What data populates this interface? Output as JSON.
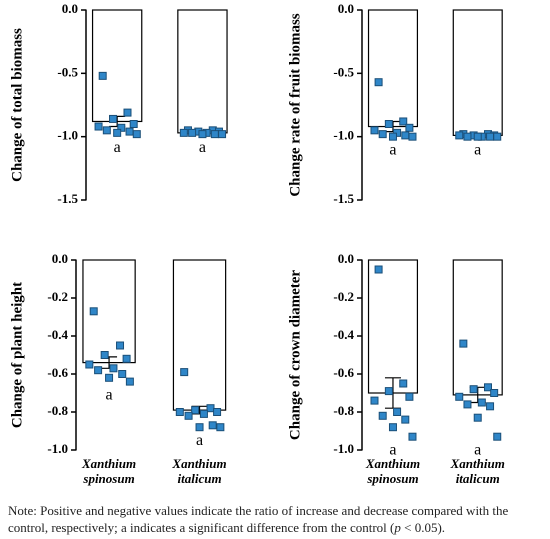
{
  "chart_data": [
    {
      "type": "bar",
      "ylabel": "Change of total biomass",
      "ylim": [
        -1.5,
        0
      ],
      "yticks": [
        {
          "value": 0,
          "label": "0.0"
        },
        -0.5,
        {
          "value": -1,
          "label": "-1.0"
        },
        -1.5
      ],
      "categories": [
        null,
        null
      ],
      "values": [
        -0.88,
        -0.97
      ],
      "errors": [
        0.04,
        0.01
      ],
      "points": [
        [
          -0.52,
          -0.81,
          -0.86,
          -0.9,
          -0.92,
          -0.93,
          -0.95,
          -0.96,
          -0.97,
          -0.98
        ],
        [
          -0.95,
          -0.95,
          -0.96,
          -0.96,
          -0.97,
          -0.97,
          -0.97,
          -0.98,
          -0.98,
          -0.98
        ]
      ],
      "annotations": [
        "a",
        "a"
      ],
      "bar_color": "#ffffff",
      "point_color": "#2f86c8"
    },
    {
      "type": "bar",
      "ylabel": "Change rate of fruit biomass",
      "ylim": [
        -1.5,
        0
      ],
      "yticks": [
        {
          "value": 0,
          "label": "0.0"
        },
        -0.5,
        {
          "value": -1,
          "label": "-1.0"
        },
        -1.5
      ],
      "categories": [
        null,
        null
      ],
      "values": [
        -0.92,
        -0.99
      ],
      "errors": [
        0.04,
        0.005
      ],
      "points": [
        [
          -0.57,
          -0.88,
          -0.9,
          -0.93,
          -0.95,
          -0.97,
          -0.98,
          -0.99,
          -1.0,
          -1.0
        ],
        [
          -0.98,
          -0.98,
          -0.99,
          -0.99,
          -0.99,
          -1.0,
          -1.0,
          -1.0,
          -1.0,
          -1.0
        ]
      ],
      "annotations": [
        "a",
        "a"
      ],
      "bar_color": "#ffffff",
      "point_color": "#2f86c8"
    },
    {
      "type": "bar",
      "ylabel": "Change of plant height",
      "ylim": [
        -1,
        0
      ],
      "yticks": [
        {
          "value": 0,
          "label": "0.0"
        },
        -0.2,
        -0.4,
        -0.6,
        -0.8,
        {
          "value": -1,
          "label": "-1.0"
        }
      ],
      "categories": [
        "Xanthium spinosum",
        "Xanthium italicum"
      ],
      "values": [
        -0.54,
        -0.79
      ],
      "errors": [
        0.03,
        0.02
      ],
      "points": [
        [
          -0.27,
          -0.45,
          -0.5,
          -0.52,
          -0.55,
          -0.57,
          -0.58,
          -0.6,
          -0.62,
          -0.64
        ],
        [
          -0.59,
          -0.78,
          -0.79,
          -0.8,
          -0.8,
          -0.81,
          -0.82,
          -0.87,
          -0.88,
          -0.88
        ]
      ],
      "annotations": [
        "a",
        "a"
      ],
      "bar_color": "#ffffff",
      "point_color": "#2f86c8"
    },
    {
      "type": "bar",
      "ylabel": "Change of crown diameter",
      "ylim": [
        -1,
        0
      ],
      "yticks": [
        {
          "value": 0,
          "label": "0.0"
        },
        -0.2,
        -0.4,
        -0.6,
        -0.8,
        {
          "value": -1,
          "label": "-1.0"
        }
      ],
      "categories": [
        "Xanthium spinosum",
        "Xanthium italicum"
      ],
      "values": [
        -0.7,
        -0.71
      ],
      "errors": [
        0.08,
        0.04
      ],
      "points": [
        [
          -0.05,
          -0.65,
          -0.69,
          -0.72,
          -0.74,
          -0.8,
          -0.82,
          -0.84,
          -0.88,
          -0.93
        ],
        [
          -0.44,
          -0.67,
          -0.68,
          -0.7,
          -0.72,
          -0.75,
          -0.76,
          -0.77,
          -0.83,
          -0.93
        ]
      ],
      "annotations": [
        "a",
        "a"
      ],
      "bar_color": "#ffffff",
      "point_color": "#2f86c8"
    }
  ],
  "note": {
    "before": "Note: Positive and negative values indicate the ratio of increase and decrease compared with the control, respectively; a indicates a significant difference from the control (",
    "p": "p",
    "after": " < 0.05)."
  }
}
